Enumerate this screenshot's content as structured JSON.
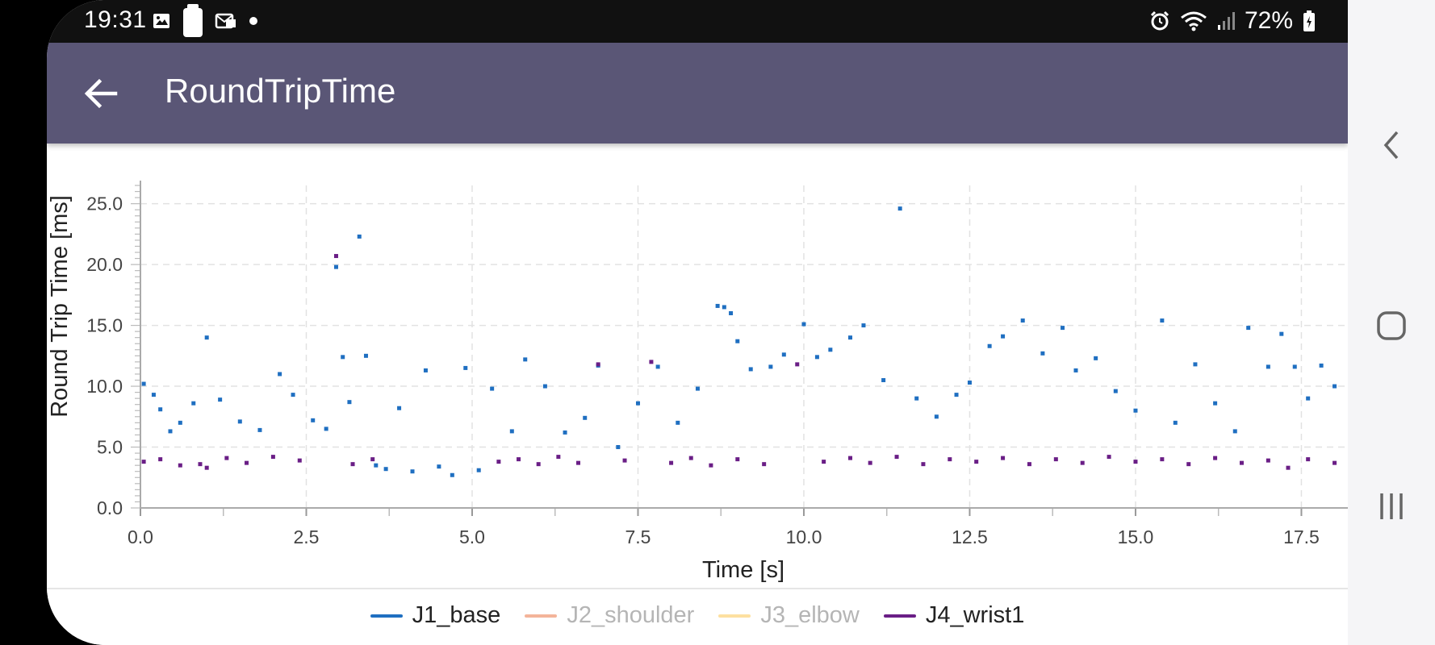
{
  "status_bar": {
    "time": "19:31",
    "battery": "72%",
    "left_icons": [
      "image-icon",
      "sim-icon",
      "mail-icon",
      "dot-icon"
    ],
    "right_icons": [
      "alarm-icon",
      "wifi-icon",
      "signal-icon",
      "battery-icon"
    ]
  },
  "app_bar": {
    "title": "RoundTripTime",
    "back_icon": "arrow-left-icon"
  },
  "chart_data": {
    "type": "scatter",
    "xlabel": "Time [s]",
    "ylabel": "Round Trip Time [ms]",
    "xlim": [
      0,
      18.2
    ],
    "ylim": [
      0,
      26.5
    ],
    "x_ticks": [
      "0.0",
      "2.5",
      "5.0",
      "7.5",
      "10.0",
      "12.5",
      "15.0",
      "17.5"
    ],
    "y_ticks": [
      "0.0",
      "5.0",
      "10.0",
      "15.0",
      "20.0",
      "25.0"
    ],
    "grid": true,
    "legend_position": "bottom",
    "series": [
      {
        "name": "J1_base",
        "color": "#1f6fc1",
        "active": true,
        "points": [
          [
            0.05,
            10.2
          ],
          [
            0.2,
            9.3
          ],
          [
            0.3,
            8.1
          ],
          [
            0.45,
            6.3
          ],
          [
            0.6,
            7.0
          ],
          [
            0.8,
            8.6
          ],
          [
            1.0,
            14.0
          ],
          [
            1.2,
            8.9
          ],
          [
            1.5,
            7.1
          ],
          [
            1.8,
            6.4
          ],
          [
            2.1,
            11.0
          ],
          [
            2.3,
            9.3
          ],
          [
            2.6,
            7.2
          ],
          [
            2.8,
            6.5
          ],
          [
            2.95,
            19.8
          ],
          [
            3.05,
            12.4
          ],
          [
            3.15,
            8.7
          ],
          [
            3.3,
            22.3
          ],
          [
            3.4,
            12.5
          ],
          [
            3.55,
            3.5
          ],
          [
            3.7,
            3.2
          ],
          [
            3.9,
            8.2
          ],
          [
            4.1,
            3.0
          ],
          [
            4.3,
            11.3
          ],
          [
            4.5,
            3.4
          ],
          [
            4.7,
            2.7
          ],
          [
            4.9,
            11.5
          ],
          [
            5.1,
            3.1
          ],
          [
            5.3,
            9.8
          ],
          [
            5.6,
            6.3
          ],
          [
            5.8,
            12.2
          ],
          [
            6.1,
            10.0
          ],
          [
            6.4,
            6.2
          ],
          [
            6.7,
            7.4
          ],
          [
            6.9,
            11.7
          ],
          [
            7.2,
            5.0
          ],
          [
            7.5,
            8.6
          ],
          [
            7.8,
            11.6
          ],
          [
            8.1,
            7.0
          ],
          [
            8.4,
            9.8
          ],
          [
            8.7,
            16.6
          ],
          [
            8.8,
            16.5
          ],
          [
            8.9,
            16.0
          ],
          [
            9.0,
            13.7
          ],
          [
            9.2,
            11.4
          ],
          [
            9.5,
            11.6
          ],
          [
            9.7,
            12.6
          ],
          [
            10.0,
            15.1
          ],
          [
            10.2,
            12.4
          ],
          [
            10.4,
            13.0
          ],
          [
            10.7,
            14.0
          ],
          [
            10.9,
            15.0
          ],
          [
            11.2,
            10.5
          ],
          [
            11.45,
            24.6
          ],
          [
            11.7,
            9.0
          ],
          [
            12.0,
            7.5
          ],
          [
            12.3,
            9.3
          ],
          [
            12.5,
            10.3
          ],
          [
            12.8,
            13.3
          ],
          [
            13.0,
            14.1
          ],
          [
            13.3,
            15.4
          ],
          [
            13.6,
            12.7
          ],
          [
            13.9,
            14.8
          ],
          [
            14.1,
            11.3
          ],
          [
            14.4,
            12.3
          ],
          [
            14.7,
            9.6
          ],
          [
            15.0,
            8.0
          ],
          [
            15.4,
            15.4
          ],
          [
            15.6,
            7.0
          ],
          [
            15.9,
            11.8
          ],
          [
            16.2,
            8.6
          ],
          [
            16.5,
            6.3
          ],
          [
            16.7,
            14.8
          ],
          [
            17.0,
            11.6
          ],
          [
            17.2,
            14.3
          ],
          [
            17.4,
            11.6
          ],
          [
            17.6,
            9.0
          ],
          [
            17.8,
            11.7
          ],
          [
            18.0,
            10.0
          ]
        ]
      },
      {
        "name": "J2_shoulder",
        "color": "#f4b49a",
        "active": false,
        "points": []
      },
      {
        "name": "J3_elbow",
        "color": "#fde0a0",
        "active": false,
        "points": []
      },
      {
        "name": "J4_wrist1",
        "color": "#6a1e86",
        "active": true,
        "points": [
          [
            0.05,
            3.8
          ],
          [
            0.3,
            4.0
          ],
          [
            0.6,
            3.5
          ],
          [
            0.9,
            3.6
          ],
          [
            1.0,
            3.3
          ],
          [
            1.3,
            4.1
          ],
          [
            1.6,
            3.7
          ],
          [
            2.0,
            4.2
          ],
          [
            2.4,
            3.9
          ],
          [
            2.95,
            20.7
          ],
          [
            3.2,
            3.6
          ],
          [
            3.5,
            4.0
          ],
          [
            5.4,
            3.8
          ],
          [
            5.7,
            4.0
          ],
          [
            6.0,
            3.6
          ],
          [
            6.3,
            4.2
          ],
          [
            6.6,
            3.7
          ],
          [
            6.9,
            11.8
          ],
          [
            7.3,
            3.9
          ],
          [
            7.7,
            12.0
          ],
          [
            8.0,
            3.7
          ],
          [
            8.3,
            4.1
          ],
          [
            8.6,
            3.5
          ],
          [
            9.0,
            4.0
          ],
          [
            9.4,
            3.6
          ],
          [
            9.9,
            11.8
          ],
          [
            10.3,
            3.8
          ],
          [
            10.7,
            4.1
          ],
          [
            11.0,
            3.7
          ],
          [
            11.4,
            4.2
          ],
          [
            11.8,
            3.6
          ],
          [
            12.2,
            4.0
          ],
          [
            12.6,
            3.8
          ],
          [
            13.0,
            4.1
          ],
          [
            13.4,
            3.6
          ],
          [
            13.8,
            4.0
          ],
          [
            14.2,
            3.7
          ],
          [
            14.6,
            4.2
          ],
          [
            15.0,
            3.8
          ],
          [
            15.4,
            4.0
          ],
          [
            15.8,
            3.6
          ],
          [
            16.2,
            4.1
          ],
          [
            16.6,
            3.7
          ],
          [
            17.0,
            3.9
          ],
          [
            17.3,
            3.3
          ],
          [
            17.6,
            4.0
          ],
          [
            18.0,
            3.7
          ]
        ]
      }
    ]
  },
  "legend": {
    "items": [
      {
        "label": "J1_base",
        "color": "#1f6fc1",
        "active": true
      },
      {
        "label": "J2_shoulder",
        "color": "#f4b49a",
        "active": false
      },
      {
        "label": "J3_elbow",
        "color": "#fde0a0",
        "active": false
      },
      {
        "label": "J4_wrist1",
        "color": "#6a1e86",
        "active": true
      }
    ]
  },
  "nav_bar": {
    "back_icon": "chevron-left-icon",
    "home_icon": "home-icon",
    "recents_icon": "recents-icon"
  }
}
